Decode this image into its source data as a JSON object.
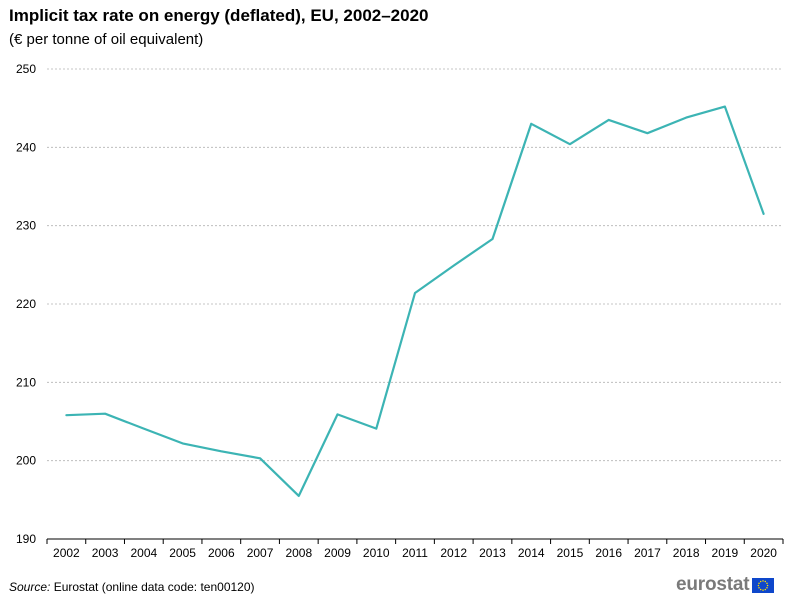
{
  "chart_data": {
    "type": "line",
    "title": "Implicit tax rate on energy (deflated), EU, 2002–2020",
    "subtitle": "(€ per tonne of oil equivalent)",
    "xlabel": "",
    "ylabel": "",
    "ylim": [
      190,
      250
    ],
    "yticks": [
      190,
      200,
      210,
      220,
      230,
      240,
      250
    ],
    "grid": true,
    "categories": [
      "2002",
      "2003",
      "2004",
      "2005",
      "2006",
      "2007",
      "2008",
      "2009",
      "2010",
      "2011",
      "2012",
      "2013",
      "2014",
      "2015",
      "2016",
      "2017",
      "2018",
      "2019",
      "2020"
    ],
    "series": [
      {
        "name": "Implicit tax rate on energy (deflated)",
        "color": "#3cb4b4",
        "values": [
          205.8,
          206.0,
          204.1,
          202.2,
          201.2,
          200.3,
          195.5,
          205.9,
          204.1,
          221.4,
          224.9,
          228.3,
          243.0,
          240.4,
          243.5,
          241.8,
          243.8,
          245.2,
          231.5
        ]
      }
    ]
  },
  "footer": {
    "source_label": "Source:",
    "source_text": "Eurostat (online data code: ten00120)"
  },
  "logo": {
    "text": "eurostat",
    "flag_color": "#0e47cb",
    "star_color": "#ffdd00"
  },
  "colors": {
    "grid": "#b4b4b4",
    "axis": "#000000"
  }
}
